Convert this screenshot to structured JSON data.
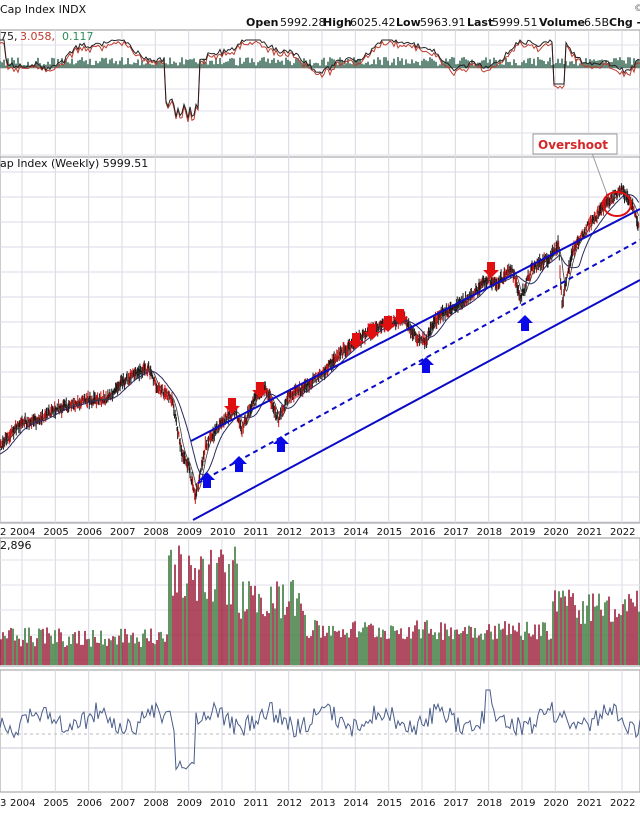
{
  "header": {
    "title": "Cap Index  INDX",
    "right_clip": "©",
    "open_label": "Open",
    "open": "5992.28",
    "high_label": "High",
    "high": "6025.42",
    "low_label": "Low",
    "low": "5963.91",
    "last_label": "Last",
    "last": "5999.51",
    "volume_label": "Volume",
    "volume": "6.5B",
    "chg_label": "Chg -"
  },
  "macd_panel": {
    "label_a": "75,",
    "label_b": "3.058,",
    "label_c": "0.117",
    "color_a": "#222222",
    "color_b": "#c0392b",
    "color_c": "#2e8b57"
  },
  "price_panel": {
    "label": "ap Index (Weekly) 5999.51",
    "annotation": "Overshoot",
    "annotation_color": "#d62728",
    "channel_color": "#0a0ac8",
    "up_arrow_color": "#0a0ae6",
    "down_arrow_color": "#e01010"
  },
  "volume_panel": {
    "label": "2,896",
    "up_color": "#3d7a3d",
    "down_color": "#9c1f3a"
  },
  "chart_data": {
    "type": "line",
    "series": [
      {
        "values": [
          [
            2003.0,
            860
          ],
          [
            2003.5,
            990
          ],
          [
            2004.0,
            1110
          ],
          [
            2004.5,
            1120
          ],
          [
            2005.0,
            1200
          ],
          [
            2005.5,
            1230
          ],
          [
            2006.0,
            1280
          ],
          [
            2006.5,
            1270
          ],
          [
            2007.0,
            1420
          ],
          [
            2007.5,
            1510
          ],
          [
            2007.8,
            1550
          ],
          [
            2008.0,
            1400
          ],
          [
            2008.5,
            1280
          ],
          [
            2008.8,
            900
          ],
          [
            2009.0,
            850
          ],
          [
            2009.2,
            680
          ],
          [
            2009.5,
            950
          ],
          [
            2010.0,
            1120
          ],
          [
            2010.4,
            1200
          ],
          [
            2010.6,
            1060
          ],
          [
            2011.0,
            1300
          ],
          [
            2011.3,
            1360
          ],
          [
            2011.7,
            1130
          ],
          [
            2012.0,
            1300
          ],
          [
            2012.5,
            1390
          ],
          [
            2013.0,
            1500
          ],
          [
            2013.5,
            1680
          ],
          [
            2014.0,
            1840
          ],
          [
            2014.5,
            1960
          ],
          [
            2015.0,
            2060
          ],
          [
            2015.5,
            2110
          ],
          [
            2015.7,
            1920
          ],
          [
            2016.1,
            1830
          ],
          [
            2016.5,
            2170
          ],
          [
            2017.0,
            2280
          ],
          [
            2017.5,
            2450
          ],
          [
            2018.0,
            2750
          ],
          [
            2018.2,
            2620
          ],
          [
            2018.7,
            2900
          ],
          [
            2018.95,
            2400
          ],
          [
            2019.3,
            2900
          ],
          [
            2019.8,
            3100
          ],
          [
            2020.1,
            3380
          ],
          [
            2020.2,
            2300
          ],
          [
            2020.5,
            3200
          ],
          [
            2021.0,
            3800
          ],
          [
            2021.5,
            4350
          ],
          [
            2022.0,
            4750
          ],
          [
            2022.3,
            4300
          ],
          [
            2022.5,
            3800
          ]
        ]
      }
    ],
    "x_ticks": [
      "2004",
      "2005",
      "2006",
      "2007",
      "2008",
      "2009",
      "2010",
      "2011",
      "2012",
      "2013",
      "2014",
      "2015",
      "2016",
      "2017",
      "2018",
      "2019",
      "2020",
      "2021",
      "2022"
    ],
    "volume_label": "2,896"
  }
}
